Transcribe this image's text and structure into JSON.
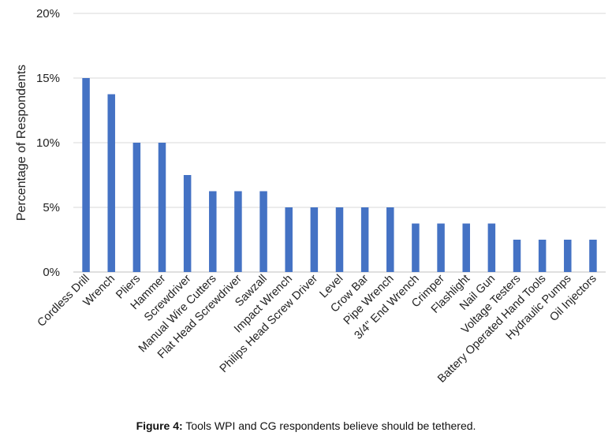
{
  "caption": {
    "label": "Figure 4:",
    "text": " Tools WPI and CG respondents believe should be tethered."
  },
  "colors": {
    "bar": "#4472C4",
    "grid": "#d9d9d9",
    "axis": "#bfbfbf"
  },
  "chart_data": {
    "type": "bar",
    "title": "",
    "xlabel": "",
    "ylabel": "Percentage of Respondents",
    "ylim": [
      0,
      20
    ],
    "yticks": [
      "0%",
      "5%",
      "10%",
      "15%",
      "20%"
    ],
    "grid": true,
    "legend": "none",
    "categories": [
      "Cordless Drill",
      "Wrench",
      "Pliers",
      "Hammer",
      "Screwdriver",
      "Manual Wire Cutters",
      "Flat Head Screwdriver",
      "Sawzall",
      "Impact Wrench",
      "Philips Head Screw Driver",
      "Level",
      "Crow Bar",
      "Pipe Wrench",
      "3/4\" End Wrench",
      "Crimper",
      "Flashlight",
      "Nail Gun",
      "Voltage Testers",
      "Battery Operated Hand Tools",
      "Hydraulic Pumps",
      "Oil Injectors"
    ],
    "values": [
      15,
      13.75,
      10,
      10,
      7.5,
      6.25,
      6.25,
      6.25,
      5,
      5,
      5,
      5,
      5,
      3.75,
      3.75,
      3.75,
      3.75,
      2.5,
      2.5,
      2.5,
      2.5
    ]
  }
}
